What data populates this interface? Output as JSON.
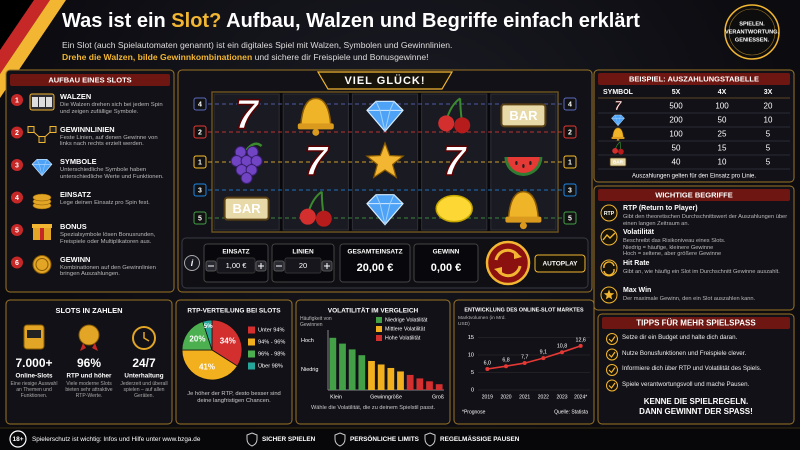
{
  "header": {
    "title_start": "Was ist ein",
    "title_highlight": "Slot?",
    "title_end": "Aufbau, Walzen und Begriffe einfach erklärt",
    "intro": "Ein Slot (auch Spielautomaten genannt) ist ein digitales Spiel mit Walzen, Symbolen und Gewinnlinien.",
    "intro_highlight": "Drehe die Walzen, bilde Gewinnkombinationen",
    "intro_end": "und sichere dir Freispiele und Bonusgewinne!",
    "badge": [
      "SPIELEN.",
      "VERANTWORTUNG.",
      "GENIESSEN."
    ]
  },
  "structure": {
    "title": "AUFBAU EINES SLOTS",
    "items": [
      {
        "number": 1,
        "title": "WALZEN",
        "text": "Die Walzen drehen sich bei jedem Spin und zeigen zufällige Symbole."
      },
      {
        "number": 2,
        "title": "GEWINNLINIEN",
        "text": "Feste Linien, auf denen Gewinne von links nach rechts erzielt werden."
      },
      {
        "number": 3,
        "title": "SYMBOLE",
        "text": "Unterschiedliche Symbole haben unterschiedliche Werte und Funktionen."
      },
      {
        "number": 4,
        "title": "EINSATZ",
        "text": "Lege deinen Einsatz pro Spin fest."
      },
      {
        "number": 5,
        "title": "BONUS",
        "text": "Spezialsymbole lösen Bonusrunden, Freispiele oder Multiplikatoren aus."
      },
      {
        "number": 6,
        "title": "GEWINN",
        "text": "Kombinationen auf den Gewinnlinien bringen Auszahlungen."
      }
    ]
  },
  "machine": {
    "banner": "VIEL GLÜCK!",
    "symbols": {
      "seven": "7",
      "bar": "BAR"
    },
    "line_numbers": [
      4,
      2,
      1,
      3,
      5
    ],
    "info": "i",
    "controls": [
      {
        "label": "EINSATZ",
        "value": "1,00 €"
      },
      {
        "label": "LINIEN",
        "value": 20
      },
      {
        "label": "GESAMTEINSATZ",
        "value": "20,00 €"
      },
      {
        "label": "GEWINN",
        "value": "0,00 €"
      }
    ],
    "autoplay": "AUTOPLAY"
  },
  "paytable": {
    "title": "BEISPIEL: AUSZAHLUNGSTABELLE",
    "columns": [
      "SYMBOL",
      "5X",
      "4X",
      "3X"
    ],
    "rows": [
      [
        "7",
        500,
        100,
        20
      ],
      [
        null,
        200,
        50,
        10
      ],
      [
        null,
        100,
        25,
        5
      ],
      [
        null,
        50,
        15,
        5
      ],
      [
        "BAR",
        40,
        10,
        5
      ]
    ],
    "note": "Auszahlungen gelten für den Einsatz pro Linie."
  },
  "terms": {
    "title": "WICHTIGE BEGRIFFE",
    "items": [
      {
        "icon": "RTP",
        "title": "RTP (Return to Player)",
        "text": [
          "Gibt den theoretischen Durchschnittswert der Auszahlungen über einen langen Zeitraum an."
        ]
      },
      {
        "title": "Volatilität",
        "text": [
          "Beschreibt das Risikoniveau eines Slots.",
          "Niedrig = häufige, kleinere Gewinne",
          "Hoch = seltene, aber größere Gewinne"
        ]
      },
      {
        "title": "Hit Rate",
        "text": [
          "Gibt an, wie häufig ein Slot im Durchschnitt Gewinne auszahlt."
        ]
      },
      {
        "title": "Max Win",
        "text": [
          "Der maximale Gewinn, den ein Slot auszahlen kann."
        ]
      }
    ]
  },
  "stats": {
    "title": "SLOTS IN ZAHLEN",
    "items": [
      {
        "value": "7.000+",
        "label": "Online-Slots",
        "text": "Eine riesige Auswahl an Themen und Funktionen."
      },
      {
        "value": "96%",
        "label": "RTP und höher",
        "text": "Viele moderne Slots bieten sehr attraktive RTP-Werte."
      },
      {
        "value": "24/7",
        "label": "Unterhaltung",
        "text": "Jederzeit und überall spielen – auf allen Geräten."
      }
    ]
  },
  "chart_data": [
    {
      "type": "pie",
      "title": "RTP-VERTEILUNG BEI SLOTS",
      "categories": [
        "Unter 94%",
        "94% - 96%",
        "96% - 98%",
        "Über 98%"
      ],
      "values": [
        34,
        41,
        20,
        5
      ],
      "value_labels": [
        "34%",
        "41%",
        "20%",
        "5%"
      ],
      "colors": [
        "#d32f2f",
        "#f2b01e",
        "#4caf50",
        "#26a69a"
      ],
      "caption": "Je höher der RTP, desto besser sind deine langfristigen Chancen."
    },
    {
      "type": "bar",
      "title": "VOLATILITÄT IM VERGLEICH",
      "ylabel": "Häufigkeit von Gewinnen",
      "ylim": [
        0,
        100
      ],
      "yticks": [
        {
          "value": 85,
          "label": "Hoch"
        },
        {
          "value": 35,
          "label": "Niedrig"
        }
      ],
      "xlabel": "Gewinngröße",
      "x_start": "Klein",
      "x_end": "Groß",
      "series": [
        {
          "name": "Niedrige Volatilität",
          "color": "#43a047",
          "values": [
            90,
            80,
            70,
            60
          ]
        },
        {
          "name": "Mittlere Volatilität",
          "color": "#f2b01e",
          "values": [
            50,
            44,
            38,
            32
          ]
        },
        {
          "name": "Hohe Volatilität",
          "color": "#d32f2f",
          "values": [
            26,
            20,
            15,
            10
          ]
        }
      ],
      "caption": "Wähle die Volatilität, die zu deinem Spielstil passt."
    },
    {
      "type": "line",
      "title": "ENTWICKLUNG DES ONLINE-SLOT MARKTES",
      "ylabel": "Marktvolumen (in Mrd. USD)",
      "categories": [
        "2019",
        "2020",
        "2021",
        "2022",
        "2023",
        "2024*"
      ],
      "values": [
        6.0,
        6.8,
        7.7,
        9.1,
        10.8,
        12.6
      ],
      "value_labels": [
        "6,0",
        "6,8",
        "7,7",
        "9,1",
        "10,8",
        "12,6"
      ],
      "color": "#e53935",
      "ylim": [
        0,
        16
      ],
      "yticks": [
        0,
        5,
        10,
        15
      ],
      "grid": true,
      "note": "*Prognose",
      "source": "Quelle: Statista"
    }
  ],
  "tips": {
    "title": "TIPPS FÜR MEHR SPIELSPASS",
    "items": [
      "Setze dir ein Budget und halte dich daran.",
      "Nutze Bonusfunktionen und Freispiele clever.",
      "Informiere dich über RTP und Volatilität des Spiels.",
      "Spiele verantwortungsvoll und mache Pausen."
    ],
    "closing": [
      "KENNE DIE SPIELREGELN.",
      "DANN GEWINNT DER SPASS!"
    ]
  },
  "footer": {
    "age": "18+",
    "text": "Spielerschutz ist wichtig: Infos und Hilfe unter www.bzga.de",
    "items": [
      "SICHER SPIELEN",
      "PERSÖNLICHE LIMITS",
      "REGELMÄSSIGE PAUSEN"
    ]
  }
}
